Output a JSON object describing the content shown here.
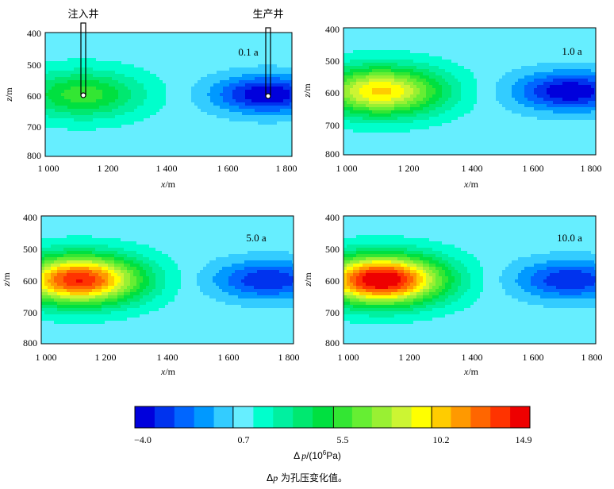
{
  "chart_data": {
    "type": "heatmap",
    "panels": [
      {
        "label": "0.1 a",
        "x_ticks": [
          "1 000",
          "1 200",
          "1 400",
          "1 600",
          "1 800"
        ],
        "y_ticks": [
          "400",
          "500",
          "600",
          "700",
          "800"
        ],
        "xlabel_var": "x",
        "xlabel_unit": "/m",
        "ylabel_var": "z",
        "ylabel_unit": "/m",
        "xlim": [
          1000,
          1800
        ],
        "ylim": [
          400,
          800
        ],
        "inj_max": 6.0,
        "prod_min": -4.0,
        "injector": [
          1120,
          600
        ],
        "producer": [
          1720,
          600
        ],
        "well_labels": [
          "注入井",
          "生产井"
        ]
      },
      {
        "label": "1.0 a",
        "x_ticks": [
          "1 000",
          "1 200",
          "1 400",
          "1 600",
          "1 800"
        ],
        "y_ticks": [
          "400",
          "500",
          "600",
          "700",
          "800"
        ],
        "xlabel_var": "x",
        "xlabel_unit": "/m",
        "ylabel_var": "z",
        "ylabel_unit": "/m",
        "xlim": [
          1000,
          1800
        ],
        "ylim": [
          400,
          800
        ],
        "inj_max": 10.5,
        "prod_min": -4.0
      },
      {
        "label": "5.0 a",
        "x_ticks": [
          "1 000",
          "1 200",
          "1 400",
          "1 600",
          "1 800"
        ],
        "y_ticks": [
          "400",
          "500",
          "600",
          "700",
          "800"
        ],
        "xlabel_var": "x",
        "xlabel_unit": "/m",
        "ylabel_var": "z",
        "ylabel_unit": "/m",
        "xlim": [
          1000,
          1800
        ],
        "ylim": [
          400,
          800
        ],
        "inj_max": 14.0,
        "prod_min": -3.0
      },
      {
        "label": "10.0 a",
        "x_ticks": [
          "1 000",
          "1 200",
          "1 400",
          "1 600",
          "1 800"
        ],
        "y_ticks": [
          "400",
          "500",
          "600",
          "700",
          "800"
        ],
        "xlabel_var": "x",
        "xlabel_unit": "/m",
        "ylabel_var": "z",
        "ylabel_unit": "/m",
        "xlim": [
          1000,
          1800
        ],
        "ylim": [
          400,
          800
        ],
        "inj_max": 15.5,
        "prod_min": -3.0
      }
    ],
    "colorbar": {
      "min": -4.0,
      "max": 14.9,
      "tick_values": [
        -4.0,
        0.7,
        5.5,
        10.2,
        14.9
      ],
      "tick_labels": [
        "−4.0",
        "0.7",
        "5.5",
        "10.2",
        "14.9"
      ],
      "colors": [
        "#0000dc",
        "#0033ee",
        "#0066ff",
        "#0099ff",
        "#33ccff",
        "#66eeff",
        "#00ffcc",
        "#00f0a0",
        "#00e870",
        "#00e040",
        "#33e633",
        "#66ee33",
        "#99f033",
        "#ccf533",
        "#ffff00",
        "#ffcc00",
        "#ff9900",
        "#ff6600",
        "#ff3300",
        "#ee0000"
      ],
      "label_prefix": "Δ",
      "label_var": "p",
      "label_unit_open": "/(10",
      "label_unit_exp": "6",
      "label_unit_close": "Pa)"
    },
    "caption_prefix": "Δ",
    "caption_var": "p",
    "caption_text": " 为孔压变化值。"
  }
}
